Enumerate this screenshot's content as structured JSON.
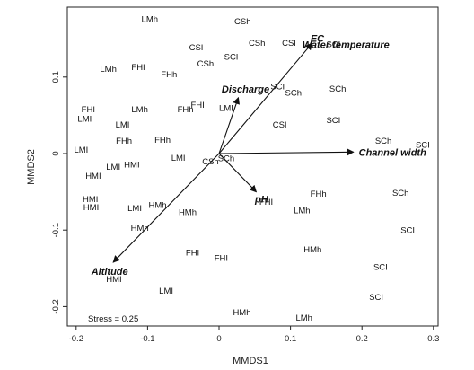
{
  "chart_data": {
    "type": "scatter",
    "xlabel": "MMDS1",
    "ylabel": "MMDS2",
    "xlim": [
      -0.205,
      0.3
    ],
    "ylim": [
      -0.225,
      0.19
    ],
    "xticks": [
      -0.2,
      -0.1,
      0,
      0.1,
      0.2,
      0.3
    ],
    "xtick_labels": [
      "-0.2",
      "-0.1",
      "0",
      "0.1",
      "0.2",
      "0.3"
    ],
    "yticks": [
      -0.2,
      -0.1,
      0,
      0.1
    ],
    "ytick_labels": [
      "-0.2",
      "-0.1",
      "0",
      "0.1"
    ],
    "grid": false,
    "stress_label": "Stress = 0.25",
    "points": [
      {
        "label": "LMh",
        "x": -0.097,
        "y": 0.176
      },
      {
        "label": "CSh",
        "x": 0.033,
        "y": 0.173
      },
      {
        "label": "CSh",
        "x": 0.053,
        "y": 0.145
      },
      {
        "label": "CSI",
        "x": 0.098,
        "y": 0.145
      },
      {
        "label": "SCI",
        "x": 0.16,
        "y": 0.143
      },
      {
        "label": "CSI",
        "x": -0.032,
        "y": 0.139
      },
      {
        "label": "SCI",
        "x": 0.017,
        "y": 0.127
      },
      {
        "label": "CSh",
        "x": -0.019,
        "y": 0.118
      },
      {
        "label": "LMh",
        "x": -0.155,
        "y": 0.111
      },
      {
        "label": "FHI",
        "x": -0.113,
        "y": 0.113
      },
      {
        "label": "FHh",
        "x": -0.07,
        "y": 0.104
      },
      {
        "label": "SCI",
        "x": 0.082,
        "y": 0.088
      },
      {
        "label": "SCh",
        "x": 0.104,
        "y": 0.08
      },
      {
        "label": "SCh",
        "x": 0.166,
        "y": 0.085
      },
      {
        "label": "FHI",
        "x": -0.183,
        "y": 0.058
      },
      {
        "label": "LMh",
        "x": -0.111,
        "y": 0.058
      },
      {
        "label": "FHh",
        "x": -0.047,
        "y": 0.058
      },
      {
        "label": "FHI",
        "x": -0.03,
        "y": 0.064
      },
      {
        "label": "LMI",
        "x": 0.01,
        "y": 0.06
      },
      {
        "label": "LMI",
        "x": -0.188,
        "y": 0.046
      },
      {
        "label": "LMI",
        "x": -0.135,
        "y": 0.038
      },
      {
        "label": "CSI",
        "x": 0.085,
        "y": 0.038
      },
      {
        "label": "SCI",
        "x": 0.16,
        "y": 0.044
      },
      {
        "label": "FHh",
        "x": -0.133,
        "y": 0.017
      },
      {
        "label": "FHh",
        "x": -0.079,
        "y": 0.018
      },
      {
        "label": "SCh",
        "x": 0.23,
        "y": 0.017
      },
      {
        "label": "SCI",
        "x": 0.285,
        "y": 0.012
      },
      {
        "label": "LMI",
        "x": -0.193,
        "y": 0.005
      },
      {
        "label": "LMI",
        "x": -0.057,
        "y": -0.005
      },
      {
        "label": "CSh",
        "x": -0.012,
        "y": -0.01
      },
      {
        "label": "SCh",
        "x": 0.01,
        "y": -0.006
      },
      {
        "label": "LMI",
        "x": -0.148,
        "y": -0.017
      },
      {
        "label": "HMI",
        "x": -0.122,
        "y": -0.014
      },
      {
        "label": "HMI",
        "x": -0.176,
        "y": -0.029
      },
      {
        "label": "FHh",
        "x": 0.139,
        "y": -0.052
      },
      {
        "label": "SCh",
        "x": 0.254,
        "y": -0.051
      },
      {
        "label": "HMI",
        "x": -0.18,
        "y": -0.059
      },
      {
        "label": "FHI",
        "x": 0.066,
        "y": -0.063
      },
      {
        "label": "HMI",
        "x": -0.179,
        "y": -0.07
      },
      {
        "label": "LMI",
        "x": -0.118,
        "y": -0.071
      },
      {
        "label": "HMh",
        "x": -0.086,
        "y": -0.067
      },
      {
        "label": "HMh",
        "x": -0.044,
        "y": -0.076
      },
      {
        "label": "LMh",
        "x": 0.116,
        "y": -0.074
      },
      {
        "label": "HMh",
        "x": -0.111,
        "y": -0.097
      },
      {
        "label": "SCI",
        "x": 0.264,
        "y": -0.1
      },
      {
        "label": "HMh",
        "x": 0.131,
        "y": -0.125
      },
      {
        "label": "FHI",
        "x": -0.037,
        "y": -0.129
      },
      {
        "label": "FHI",
        "x": 0.003,
        "y": -0.136
      },
      {
        "label": "SCI",
        "x": 0.226,
        "y": -0.148
      },
      {
        "label": "HMI",
        "x": -0.147,
        "y": -0.164
      },
      {
        "label": "LMI",
        "x": -0.074,
        "y": -0.179
      },
      {
        "label": "SCI",
        "x": 0.22,
        "y": -0.187
      },
      {
        "label": "HMh",
        "x": 0.032,
        "y": -0.207
      },
      {
        "label": "LMh",
        "x": 0.119,
        "y": -0.214
      }
    ],
    "vectors": [
      {
        "label": "EC",
        "x": 0.13,
        "y": 0.144
      },
      {
        "label": "Water temperature",
        "x": 0.185,
        "y": 0.126
      },
      {
        "label": "Discharge",
        "x": 0.027,
        "y": 0.073
      },
      {
        "label": "Channel width",
        "x": 0.188,
        "y": 0.002
      },
      {
        "label": "pH",
        "x": 0.052,
        "y": -0.05
      },
      {
        "label": "Altitude",
        "x": -0.148,
        "y": -0.142
      }
    ]
  }
}
